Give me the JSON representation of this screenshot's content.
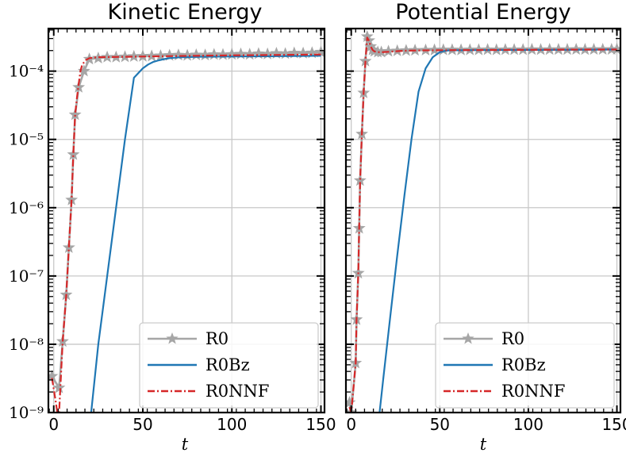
{
  "chart_data": [
    {
      "type": "line",
      "title": "Kinetic Energy",
      "xlabel": "t",
      "ylabel": "",
      "xlim": [
        -3,
        152
      ],
      "ylim": [
        1e-09,
        0.00042
      ],
      "yscale": "log",
      "xticks": [
        0,
        50,
        100,
        150
      ],
      "yticks": [
        1e-09,
        1e-08,
        1e-07,
        1e-06,
        1e-05,
        0.0001
      ],
      "ytick_labels": [
        "10⁻⁹",
        "10⁻⁸",
        "10⁻⁷",
        "10⁻⁶",
        "10⁻⁵",
        "10⁻⁴"
      ],
      "grid": true,
      "legend_position": "lower-right",
      "series": [
        {
          "name": "R0",
          "color": "#a6a6a6",
          "marker": "star",
          "x": [
            -1,
            3,
            5,
            7,
            8.5,
            10,
            11,
            12,
            14,
            17,
            20,
            25,
            30,
            35,
            40,
            45,
            50,
            55,
            60,
            65,
            70,
            75,
            80,
            85,
            90,
            95,
            100,
            105,
            110,
            115,
            120,
            125,
            130,
            135,
            140,
            145,
            150
          ],
          "y": [
            3.4e-09,
            2.3e-09,
            1.1e-08,
            5.3e-08,
            2.6e-07,
            1.3e-06,
            6e-06,
            2.3e-05,
            5.8e-05,
            0.0001,
            0.00015,
            0.000155,
            0.00016,
            0.00016,
            0.000162,
            0.000164,
            0.000165,
            0.000166,
            0.000168,
            0.00017,
            0.000172,
            0.00017,
            0.000173,
            0.000172,
            0.000175,
            0.000174,
            0.000176,
            0.000178,
            0.000176,
            0.00018,
            0.000178,
            0.000182,
            0.00018,
            0.000184,
            0.000183,
            0.000185,
            0.00019
          ]
        },
        {
          "name": "R0Bz",
          "color": "#1f77b4",
          "marker": "none",
          "x": [
            21,
            25,
            30,
            35,
            40,
            45,
            50,
            53,
            56,
            59,
            62,
            65,
            70,
            80,
            100,
            120,
            150
          ],
          "y": [
            1e-09,
            1e-08,
            1e-07,
            1e-06,
            1e-05,
            8e-05,
            0.00011,
            0.000125,
            0.000137,
            0.000144,
            0.00015,
            0.000155,
            0.000159,
            0.000162,
            0.000164,
            0.000165,
            0.000168
          ]
        },
        {
          "name": "R0NNF",
          "color": "#d62728",
          "marker": "none",
          "x": [
            -1,
            1,
            2,
            3,
            5,
            7,
            8.5,
            10,
            11,
            12,
            13,
            14,
            15,
            16,
            18,
            20,
            25,
            40,
            60,
            80,
            100,
            120,
            150
          ],
          "y": [
            3.2e-09,
            1.5e-09,
            1e-09,
            1e-09,
            1.1e-08,
            5.3e-08,
            2.6e-07,
            1.3e-06,
            6e-06,
            2.3e-05,
            4e-05,
            6.5e-05,
            0.0001,
            0.000125,
            0.000145,
            0.000155,
            0.00016,
            0.000162,
            0.000165,
            0.000168,
            0.00017,
            0.000172,
            0.000175
          ]
        }
      ]
    },
    {
      "type": "line",
      "title": "Potential Energy",
      "xlabel": "t",
      "ylabel": "",
      "xlim": [
        -3,
        152
      ],
      "ylim": [
        1e-09,
        0.00042
      ],
      "yscale": "log",
      "xticks": [
        0,
        50,
        100,
        150
      ],
      "yticks": [
        1e-09,
        1e-08,
        1e-07,
        1e-06,
        1e-05,
        0.0001
      ],
      "grid": true,
      "legend_position": "lower-right",
      "series": [
        {
          "name": "R0",
          "color": "#a6a6a6",
          "marker": "star",
          "x": [
            -1,
            0,
            2.5,
            3,
            4,
            4.5,
            5,
            6,
            7,
            8,
            9,
            10,
            11,
            12,
            13,
            15,
            17,
            21,
            26,
            31,
            36,
            42,
            47,
            52,
            57,
            62,
            67,
            72,
            77,
            82,
            87,
            92,
            97,
            102,
            107,
            112,
            117,
            122,
            127,
            132,
            137,
            142,
            147,
            150
          ],
          "y": [
            1.4e-09,
            1e-09,
            5.3e-09,
            2.3e-08,
            1.1e-07,
            5e-07,
            2.5e-06,
            1.2e-05,
            4.8e-05,
            0.00014,
            0.00032,
            0.00028,
            0.00023,
            0.000205,
            0.000195,
            0.00019,
            0.00019,
            0.000195,
            0.000198,
            0.0002,
            0.000202,
            0.000203,
            0.000204,
            0.000205,
            0.000205,
            0.000204,
            0.000205,
            0.000205,
            0.000206,
            0.000205,
            0.000206,
            0.000206,
            0.000206,
            0.000207,
            0.000206,
            0.000207,
            0.000207,
            0.000207,
            0.000208,
            0.000207,
            0.000208,
            0.000208,
            0.000208,
            0.000209
          ]
        },
        {
          "name": "R0Bz",
          "color": "#1f77b4",
          "marker": "none",
          "x": [
            16,
            18,
            22,
            26,
            30,
            34,
            38,
            42,
            46,
            50,
            53,
            55,
            57,
            60,
            70,
            90,
            120,
            150
          ],
          "y": [
            1e-09,
            3e-09,
            2.5e-08,
            2e-07,
            1.5e-06,
            1e-05,
            5e-05,
            0.00011,
            0.00016,
            0.00019,
            0.000198,
            0.000201,
            0.000202,
            0.000202,
            0.000203,
            0.000204,
            0.000205,
            0.000207
          ]
        },
        {
          "name": "R0NNF",
          "color": "#d62728",
          "marker": "none",
          "x": [
            -1,
            0,
            2.5,
            3,
            4,
            4.5,
            5,
            6,
            7,
            8,
            9,
            10,
            11,
            12,
            13,
            15,
            17,
            21,
            26,
            31,
            40,
            60,
            80,
            100,
            120,
            150
          ],
          "y": [
            1.2e-09,
            1e-09,
            5.3e-09,
            2.3e-08,
            1.1e-07,
            5e-07,
            2.5e-06,
            1.2e-05,
            4.8e-05,
            0.00014,
            0.00031,
            0.00028,
            0.00023,
            0.000205,
            0.000195,
            0.00019,
            0.000189,
            0.000192,
            0.000196,
            0.000199,
            0.000201,
            0.000203,
            0.000204,
            0.000205,
            0.000206,
            0.000207
          ]
        }
      ]
    }
  ]
}
